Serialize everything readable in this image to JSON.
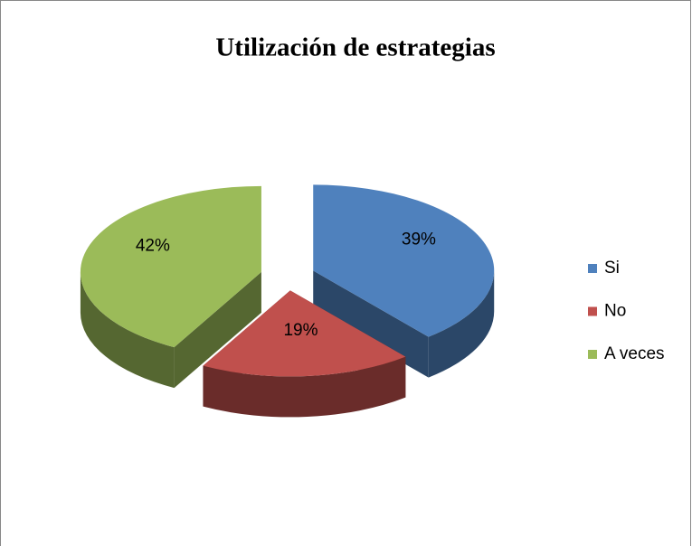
{
  "chart_data": {
    "type": "pie3d",
    "title": "Utilización de estrategias",
    "categories": [
      "Si",
      "No",
      "A veces"
    ],
    "values": [
      39,
      19,
      42
    ],
    "value_labels": [
      "39%",
      "19%",
      "42%"
    ],
    "colors": [
      "#4f81bd",
      "#c0504d",
      "#9bbb59"
    ],
    "legend": "right"
  }
}
